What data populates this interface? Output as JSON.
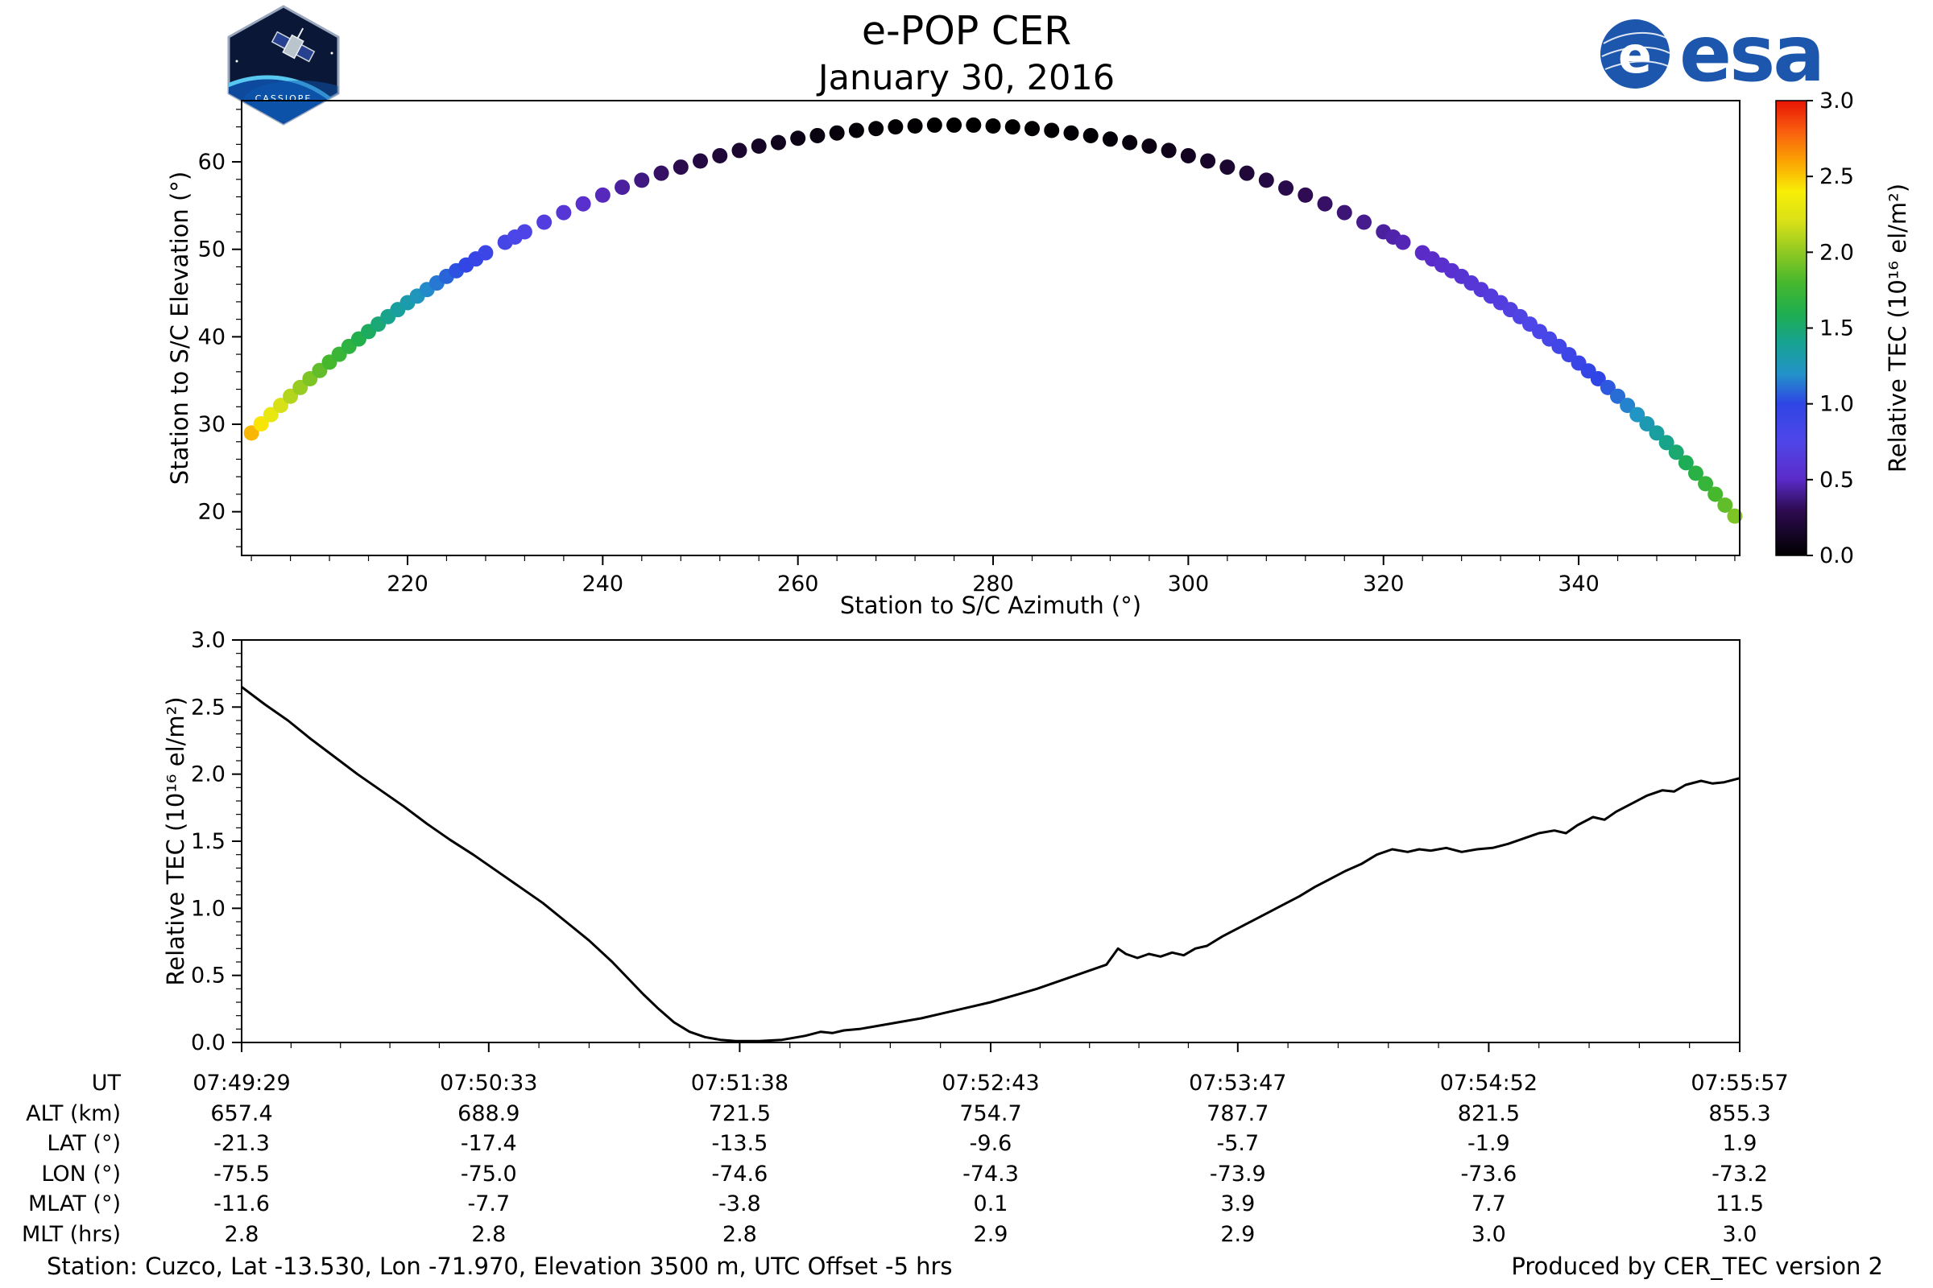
{
  "header": {
    "title": "e-POP CER",
    "date": "January 30, 2016",
    "mission_patch_label": "CASSIOPE",
    "esa_mark": "e",
    "esa_logo_text": "esa"
  },
  "chart_data": [
    {
      "type": "scatter",
      "xlabel": "Station to S/C Azimuth (°)",
      "ylabel": "Station to S/C Elevation (°)",
      "xlim": [
        203,
        356.5
      ],
      "ylim": [
        15,
        67
      ],
      "xticks": [
        220,
        240,
        260,
        280,
        300,
        320,
        340
      ],
      "yticks": [
        20,
        30,
        40,
        50,
        60
      ],
      "x": [
        204,
        206,
        208,
        210,
        212,
        214,
        216,
        218,
        220,
        222,
        224,
        226,
        228,
        230,
        232,
        234,
        236,
        238,
        240,
        242,
        244,
        246,
        248,
        250,
        252,
        254,
        256,
        258,
        260,
        262,
        264,
        266,
        268,
        270,
        272,
        274,
        276,
        278,
        280,
        282,
        284,
        286,
        288,
        290,
        292,
        294,
        296,
        298,
        300,
        302,
        304,
        306,
        308,
        310,
        312,
        314,
        316,
        318,
        320,
        322,
        324,
        326,
        328,
        330,
        332,
        334,
        336,
        338,
        340,
        342,
        344,
        346,
        348,
        350,
        352,
        354,
        356
      ],
      "y": [
        29.0,
        31.1,
        33.2,
        35.2,
        37.1,
        38.9,
        40.6,
        42.3,
        43.9,
        45.4,
        46.9,
        48.2,
        49.6,
        50.8,
        52.0,
        53.1,
        54.2,
        55.2,
        56.2,
        57.1,
        57.9,
        58.7,
        59.4,
        60.1,
        60.7,
        61.3,
        61.8,
        62.2,
        62.7,
        63.0,
        63.3,
        63.6,
        63.8,
        64.0,
        64.1,
        64.2,
        64.2,
        64.2,
        64.1,
        64.0,
        63.8,
        63.6,
        63.3,
        63.0,
        62.6,
        62.2,
        61.8,
        61.3,
        60.7,
        60.1,
        59.4,
        58.7,
        57.9,
        57.0,
        56.2,
        55.2,
        54.2,
        53.1,
        52.0,
        50.8,
        49.6,
        48.2,
        46.9,
        45.4,
        43.9,
        42.3,
        40.6,
        38.9,
        37.0,
        35.2,
        33.2,
        31.1,
        29.0,
        26.8,
        24.4,
        22.0,
        19.5
      ],
      "c": [
        2.55,
        2.3,
        2.1,
        1.95,
        1.8,
        1.68,
        1.55,
        1.42,
        1.3,
        1.18,
        1.08,
        0.98,
        0.9,
        0.82,
        0.74,
        0.67,
        0.6,
        0.54,
        0.48,
        0.43,
        0.38,
        0.33,
        0.28,
        0.24,
        0.2,
        0.17,
        0.14,
        0.11,
        0.08,
        0.06,
        0.04,
        0.03,
        0.02,
        0.01,
        0.01,
        0.0,
        0.0,
        0.0,
        0.0,
        0.0,
        0.01,
        0.01,
        0.02,
        0.02,
        0.03,
        0.05,
        0.07,
        0.09,
        0.12,
        0.15,
        0.18,
        0.21,
        0.24,
        0.27,
        0.3,
        0.33,
        0.36,
        0.4,
        0.43,
        0.47,
        0.5,
        0.54,
        0.58,
        0.62,
        0.67,
        0.72,
        0.78,
        0.85,
        0.92,
        1.0,
        1.1,
        1.22,
        1.35,
        1.5,
        1.65,
        1.8,
        1.95
      ],
      "colorbar": {
        "label": "Relative TEC (10¹⁶ el/m²)",
        "min": 0,
        "max": 3,
        "ticks": [
          "0.0",
          "0.5",
          "1.0",
          "1.5",
          "2.0",
          "2.5",
          "3.0"
        ],
        "stops": [
          [
            0,
            "#000000"
          ],
          [
            0.3,
            "#2e0b52"
          ],
          [
            0.5,
            "#5b2bc8"
          ],
          [
            0.75,
            "#4f46e8"
          ],
          [
            1.0,
            "#2f45e5"
          ],
          [
            1.2,
            "#2293c8"
          ],
          [
            1.4,
            "#17a393"
          ],
          [
            1.6,
            "#1fae4e"
          ],
          [
            1.8,
            "#46b82e"
          ],
          [
            2.0,
            "#8fc922"
          ],
          [
            2.2,
            "#d8e018"
          ],
          [
            2.4,
            "#f8ee06"
          ],
          [
            2.6,
            "#fba303"
          ],
          [
            2.8,
            "#f95d0e"
          ],
          [
            3.0,
            "#e81405"
          ]
        ]
      }
    },
    {
      "type": "line",
      "ylabel": "Relative TEC (10¹⁶ el/m²)",
      "xlim": [
        0,
        388
      ],
      "ylim": [
        0,
        3
      ],
      "yticks": [
        "0.0",
        "0.5",
        "1.0",
        "1.5",
        "2.0",
        "2.5",
        "3.0"
      ],
      "xtick_seconds": [
        0,
        64,
        129,
        194,
        258,
        323,
        388
      ],
      "x": [
        0,
        6,
        12,
        18,
        24,
        30,
        36,
        42,
        48,
        54,
        60,
        66,
        72,
        78,
        84,
        90,
        96,
        100,
        104,
        108,
        112,
        116,
        120,
        124,
        128,
        134,
        140,
        146,
        150,
        153,
        156,
        160,
        164,
        170,
        176,
        182,
        188,
        194,
        200,
        206,
        212,
        218,
        224,
        227,
        229,
        232,
        235,
        238,
        241,
        244,
        247,
        250,
        254,
        258,
        262,
        266,
        270,
        274,
        278,
        282,
        286,
        290,
        294,
        298,
        302,
        305,
        308,
        312,
        316,
        320,
        324,
        328,
        332,
        336,
        340,
        343,
        346,
        350,
        353,
        356,
        360,
        364,
        368,
        371,
        374,
        378,
        381,
        384,
        388
      ],
      "y": [
        2.65,
        2.52,
        2.4,
        2.26,
        2.13,
        2.0,
        1.88,
        1.76,
        1.63,
        1.51,
        1.4,
        1.28,
        1.16,
        1.04,
        0.9,
        0.76,
        0.6,
        0.48,
        0.36,
        0.25,
        0.15,
        0.08,
        0.04,
        0.02,
        0.01,
        0.01,
        0.02,
        0.05,
        0.08,
        0.07,
        0.09,
        0.1,
        0.12,
        0.15,
        0.18,
        0.22,
        0.26,
        0.3,
        0.35,
        0.4,
        0.46,
        0.52,
        0.58,
        0.7,
        0.66,
        0.63,
        0.66,
        0.64,
        0.67,
        0.65,
        0.7,
        0.72,
        0.79,
        0.85,
        0.91,
        0.97,
        1.03,
        1.09,
        1.16,
        1.22,
        1.28,
        1.33,
        1.4,
        1.44,
        1.42,
        1.44,
        1.43,
        1.45,
        1.42,
        1.44,
        1.45,
        1.48,
        1.52,
        1.56,
        1.58,
        1.56,
        1.62,
        1.68,
        1.66,
        1.72,
        1.78,
        1.84,
        1.88,
        1.87,
        1.92,
        1.95,
        1.93,
        1.94,
        1.97
      ]
    }
  ],
  "table": {
    "row_labels": [
      "UT",
      "ALT (km)",
      "LAT (°)",
      "LON (°)",
      "MLAT (°)",
      "MLT (hrs)"
    ],
    "columns": [
      [
        "07:49:29",
        "657.4",
        "-21.3",
        "-75.5",
        "-11.6",
        "2.8"
      ],
      [
        "07:50:33",
        "688.9",
        "-17.4",
        "-75.0",
        "-7.7",
        "2.8"
      ],
      [
        "07:51:38",
        "721.5",
        "-13.5",
        "-74.6",
        "-3.8",
        "2.8"
      ],
      [
        "07:52:43",
        "754.7",
        "-9.6",
        "-74.3",
        "0.1",
        "2.9"
      ],
      [
        "07:53:47",
        "787.7",
        "-5.7",
        "-73.9",
        "3.9",
        "2.9"
      ],
      [
        "07:54:52",
        "821.5",
        "-1.9",
        "-73.6",
        "7.7",
        "3.0"
      ],
      [
        "07:55:57",
        "855.3",
        "1.9",
        "-73.2",
        "11.5",
        "3.0"
      ]
    ]
  },
  "footer": {
    "left": "Station: Cuzco, Lat -13.530, Lon -71.970, Elevation 3500 m, UTC Offset -5 hrs",
    "right": "Produced by CER_TEC version 2"
  }
}
